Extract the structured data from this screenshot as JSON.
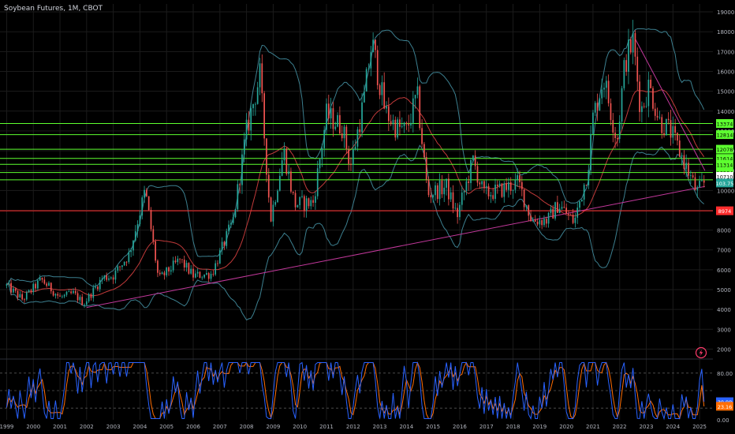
{
  "header": {
    "title": "Soybean Futures, 1M, CBOT"
  },
  "colors": {
    "up": "#26a69a",
    "down": "#ef5350",
    "support": "#5dff2f",
    "red_line": "#ff2d2d",
    "trend": "#c2389b",
    "band": "#3c7f8f",
    "basis": "#c23a3a",
    "k": "#2962ff",
    "d": "#ff6d00",
    "text": "#b2b5be",
    "grid": "#1b1b1b"
  },
  "chart_data": [
    {
      "type": "candlestick",
      "title": "Soybean Futures, 1M, CBOT",
      "x_tick_labels": [
        "1999",
        "2000",
        "2001",
        "2002",
        "2003",
        "2004",
        "2005",
        "2006",
        "2007",
        "2008",
        "2009",
        "2010",
        "2011",
        "2012",
        "2013",
        "2014",
        "2015",
        "2016",
        "2017",
        "2018",
        "2019",
        "2020",
        "2021",
        "2022",
        "2023",
        "2024",
        "2025"
      ],
      "y_tick_labels": [
        "2000",
        "3000",
        "4000",
        "5000",
        "6000",
        "7000",
        "8000",
        "9000",
        "10000",
        "11000",
        "12000",
        "13000",
        "14000",
        "15000",
        "16000",
        "17000",
        "18000",
        "19000"
      ],
      "ylim": [
        1500,
        19400
      ],
      "price_anchors": [
        {
          "t": 1999.0,
          "p": 5200
        },
        {
          "t": 1999.6,
          "p": 4500
        },
        {
          "t": 2000.3,
          "p": 5500
        },
        {
          "t": 2001.0,
          "p": 4600
        },
        {
          "t": 2001.5,
          "p": 4800
        },
        {
          "t": 2001.9,
          "p": 4300
        },
        {
          "t": 2002.6,
          "p": 5600
        },
        {
          "t": 2003.0,
          "p": 5700
        },
        {
          "t": 2003.6,
          "p": 6800
        },
        {
          "t": 2004.2,
          "p": 10000
        },
        {
          "t": 2004.7,
          "p": 5500
        },
        {
          "t": 2005.5,
          "p": 6500
        },
        {
          "t": 2006.0,
          "p": 5700
        },
        {
          "t": 2006.7,
          "p": 5800
        },
        {
          "t": 2007.5,
          "p": 8500
        },
        {
          "t": 2008.0,
          "p": 13000
        },
        {
          "t": 2008.5,
          "p": 15800
        },
        {
          "t": 2008.9,
          "p": 8500
        },
        {
          "t": 2009.4,
          "p": 12000
        },
        {
          "t": 2009.8,
          "p": 9300
        },
        {
          "t": 2010.5,
          "p": 9400
        },
        {
          "t": 2011.0,
          "p": 13800
        },
        {
          "t": 2011.6,
          "p": 13200
        },
        {
          "t": 2011.9,
          "p": 11200
        },
        {
          "t": 2012.4,
          "p": 14500
        },
        {
          "t": 2012.7,
          "p": 17500
        },
        {
          "t": 2013.2,
          "p": 14000
        },
        {
          "t": 2013.6,
          "p": 13200
        },
        {
          "t": 2014.0,
          "p": 13000
        },
        {
          "t": 2014.4,
          "p": 14800
        },
        {
          "t": 2014.8,
          "p": 9800
        },
        {
          "t": 2015.5,
          "p": 10200
        },
        {
          "t": 2015.9,
          "p": 8700
        },
        {
          "t": 2016.5,
          "p": 11500
        },
        {
          "t": 2016.9,
          "p": 9800
        },
        {
          "t": 2017.5,
          "p": 10000
        },
        {
          "t": 2018.2,
          "p": 10400
        },
        {
          "t": 2018.7,
          "p": 8500
        },
        {
          "t": 2019.3,
          "p": 8500
        },
        {
          "t": 2019.7,
          "p": 9300
        },
        {
          "t": 2020.3,
          "p": 8400
        },
        {
          "t": 2020.8,
          "p": 11000
        },
        {
          "t": 2021.0,
          "p": 13700
        },
        {
          "t": 2021.4,
          "p": 15700
        },
        {
          "t": 2021.9,
          "p": 12500
        },
        {
          "t": 2022.2,
          "p": 16500
        },
        {
          "t": 2022.5,
          "p": 17500
        },
        {
          "t": 2022.8,
          "p": 14000
        },
        {
          "t": 2023.1,
          "p": 15300
        },
        {
          "t": 2023.5,
          "p": 13500
        },
        {
          "t": 2023.9,
          "p": 13000
        },
        {
          "t": 2024.4,
          "p": 11500
        },
        {
          "t": 2024.9,
          "p": 9900
        },
        {
          "t": 2025.25,
          "p": 10500
        }
      ],
      "horizontal_levels": [
        {
          "value": 13374,
          "label": "13374",
          "color": "#5dff2f"
        },
        {
          "value": 12814,
          "label": "12814",
          "color": "#5dff2f"
        },
        {
          "value": 12078,
          "label": "12078",
          "color": "#5dff2f"
        },
        {
          "value": 11614,
          "label": "11614",
          "color": "#5dff2f"
        },
        {
          "value": 11314,
          "label": "11314",
          "color": "#5dff2f"
        },
        {
          "value": 10904,
          "label": "10904",
          "color": "#5dff2f"
        },
        {
          "value": 10534,
          "label": "10534",
          "color": "#5dff2f"
        },
        {
          "value": 8974,
          "label": "8974",
          "color": "#ff2d2d"
        }
      ],
      "trendlines": [
        {
          "from": [
            2002.0,
            4100
          ],
          "to": [
            2025.2,
            10200
          ],
          "color": "#c2389b"
        },
        {
          "from": [
            2022.6,
            17600
          ],
          "to": [
            2025.2,
            11000
          ],
          "color": "#c2389b"
        }
      ],
      "current_price": {
        "value": 10710,
        "label": "10710"
      },
      "last_price": {
        "value": 10375,
        "label": "103.75"
      },
      "indicator_icon": "lightning-icon"
    },
    {
      "type": "line",
      "name": "Stochastic RSI",
      "ylim": [
        0,
        100
      ],
      "y_tick_labels": [
        "0.00",
        "20.00",
        "80.00"
      ],
      "levels": [
        20,
        50,
        80
      ],
      "series": [
        {
          "key": "k",
          "color": "#2962ff",
          "last_value": 30.98,
          "last_label": "30.98"
        },
        {
          "key": "d",
          "color": "#ff6d00",
          "last_value": 23.16,
          "last_label": "23.16"
        }
      ]
    }
  ]
}
